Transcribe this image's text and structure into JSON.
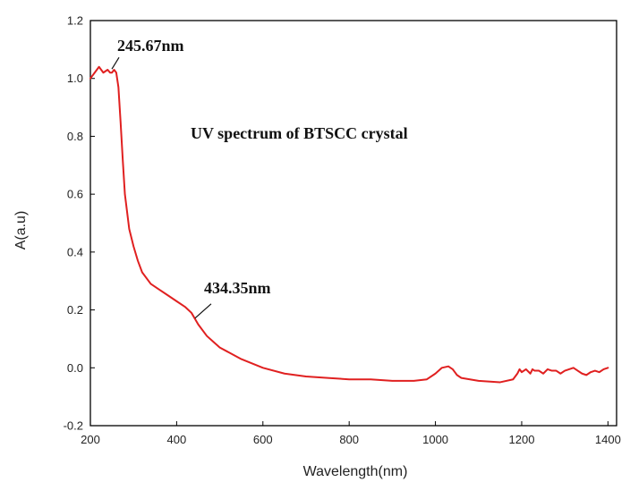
{
  "chart_data": {
    "type": "line",
    "title": "UV spectrum of BTSCC crystal",
    "xlabel": "Wavelength(nm)",
    "ylabel": "A(a.u)",
    "xlim": [
      200,
      1420
    ],
    "ylim": [
      -0.2,
      1.2
    ],
    "xticks": [
      200,
      400,
      600,
      800,
      1000,
      1200,
      1400
    ],
    "xtick_labels": [
      "200",
      "400",
      "600",
      "800",
      "1000",
      "1200",
      "1400"
    ],
    "yticks": [
      -0.2,
      0.0,
      0.2,
      0.4,
      0.6,
      0.8,
      1.0,
      1.2
    ],
    "ytick_labels": [
      "-0.2",
      "0.0",
      "0.2",
      "0.4",
      "0.6",
      "0.8",
      "1.0",
      "1.2"
    ],
    "grid": false,
    "line_color": "#e02020",
    "series": [
      {
        "x": [
          200,
          210,
          220,
          230,
          240,
          245.67,
          250,
          255,
          260,
          265,
          270,
          275,
          280,
          290,
          300,
          310,
          320,
          340,
          360,
          380,
          400,
          420,
          434.35,
          450,
          470,
          500,
          550,
          600,
          650,
          700,
          750,
          800,
          850,
          900,
          950,
          980,
          1000,
          1015,
          1030,
          1040,
          1050,
          1060,
          1080,
          1100,
          1150,
          1180,
          1190,
          1195,
          1200,
          1210,
          1220,
          1225,
          1230,
          1240,
          1250,
          1260,
          1270,
          1280,
          1290,
          1300,
          1310,
          1320,
          1330,
          1340,
          1350,
          1360,
          1370,
          1380,
          1390,
          1400
        ],
        "y": [
          1.0,
          1.02,
          1.04,
          1.02,
          1.03,
          1.02,
          1.02,
          1.03,
          1.02,
          0.97,
          0.85,
          0.72,
          0.6,
          0.48,
          0.42,
          0.37,
          0.33,
          0.29,
          0.27,
          0.25,
          0.23,
          0.21,
          0.19,
          0.15,
          0.11,
          0.07,
          0.03,
          0.0,
          -0.02,
          -0.03,
          -0.035,
          -0.04,
          -0.04,
          -0.045,
          -0.045,
          -0.04,
          -0.02,
          0.0,
          0.005,
          -0.005,
          -0.025,
          -0.035,
          -0.04,
          -0.045,
          -0.05,
          -0.04,
          -0.02,
          -0.005,
          -0.015,
          -0.005,
          -0.02,
          -0.005,
          -0.01,
          -0.01,
          -0.02,
          -0.005,
          -0.01,
          -0.01,
          -0.02,
          -0.01,
          -0.005,
          0.0,
          -0.01,
          -0.02,
          -0.025,
          -0.015,
          -0.01,
          -0.015,
          -0.005,
          0.0
        ]
      }
    ],
    "annotations": [
      {
        "text": "245.67nm",
        "x": 245.67,
        "y": 1.02
      },
      {
        "text": "434.35nm",
        "x": 434.35,
        "y": 0.19
      }
    ]
  }
}
